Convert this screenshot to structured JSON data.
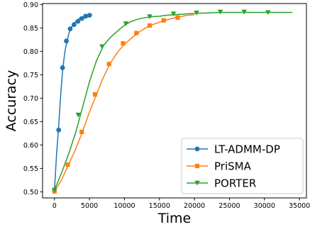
{
  "chart_data": {
    "type": "line",
    "title": "",
    "xlabel": "Time",
    "ylabel": "Accuracy",
    "xlim": [
      -1700,
      36000
    ],
    "ylim": [
      0.487,
      0.902
    ],
    "xticks": [
      0,
      5000,
      10000,
      15000,
      20000,
      25000,
      30000,
      35000
    ],
    "xtick_labels": [
      "0",
      "5000",
      "10000",
      "15000",
      "20000",
      "25000",
      "30000",
      "35000"
    ],
    "yticks": [
      0.5,
      0.55,
      0.6,
      0.65,
      0.7,
      0.75,
      0.8,
      0.85,
      0.9
    ],
    "ytick_labels": [
      "0.50",
      "0.55",
      "0.60",
      "0.65",
      "0.70",
      "0.75",
      "0.80",
      "0.85",
      "0.90"
    ],
    "grid": false,
    "legend_position": "lower-right",
    "series": [
      {
        "name": "LT-ADMM-DP",
        "color": "#1f77b4",
        "marker": "circle",
        "line": [
          [
            0,
            0.503
          ],
          [
            300,
            0.58
          ],
          [
            600,
            0.64
          ],
          [
            900,
            0.71
          ],
          [
            1200,
            0.765
          ],
          [
            1500,
            0.8
          ],
          [
            1800,
            0.822
          ],
          [
            2100,
            0.84
          ],
          [
            2400,
            0.85
          ],
          [
            2700,
            0.858
          ],
          [
            3000,
            0.863
          ],
          [
            3300,
            0.867
          ],
          [
            3600,
            0.871
          ],
          [
            3900,
            0.873
          ],
          [
            4200,
            0.874
          ],
          [
            4500,
            0.876
          ],
          [
            4800,
            0.877
          ],
          [
            5100,
            0.877
          ],
          [
            5400,
            0.878
          ]
        ],
        "points": [
          [
            0,
            0.503
          ],
          [
            600,
            0.632
          ],
          [
            1150,
            0.765
          ],
          [
            1700,
            0.822
          ],
          [
            2250,
            0.848
          ],
          [
            2800,
            0.857
          ],
          [
            3350,
            0.864
          ],
          [
            3900,
            0.87
          ],
          [
            4450,
            0.875
          ],
          [
            5000,
            0.877
          ]
        ]
      },
      {
        "name": "PriSMA",
        "color": "#ff7f0e",
        "marker": "square",
        "line": [
          [
            0,
            0.501
          ],
          [
            1000,
            0.525
          ],
          [
            2000,
            0.558
          ],
          [
            3000,
            0.59
          ],
          [
            4000,
            0.628
          ],
          [
            5000,
            0.67
          ],
          [
            6000,
            0.708
          ],
          [
            7000,
            0.745
          ],
          [
            8000,
            0.775
          ],
          [
            9000,
            0.798
          ],
          [
            10000,
            0.815
          ],
          [
            11000,
            0.828
          ],
          [
            12000,
            0.84
          ],
          [
            13000,
            0.85
          ],
          [
            14000,
            0.857
          ],
          [
            15000,
            0.862
          ],
          [
            16000,
            0.867
          ],
          [
            17000,
            0.871
          ],
          [
            18000,
            0.874
          ],
          [
            19000,
            0.877
          ],
          [
            20000,
            0.878
          ]
        ],
        "points": [
          [
            0,
            0.501
          ],
          [
            1900,
            0.558
          ],
          [
            3900,
            0.628
          ],
          [
            5800,
            0.708
          ],
          [
            7800,
            0.773
          ],
          [
            9800,
            0.817
          ],
          [
            11700,
            0.839
          ],
          [
            13600,
            0.855
          ],
          [
            15600,
            0.866
          ],
          [
            17600,
            0.872
          ]
        ]
      },
      {
        "name": "PORTER",
        "color": "#2ca02c",
        "marker": "triangle-down",
        "line": [
          [
            0,
            0.504
          ],
          [
            1000,
            0.54
          ],
          [
            2000,
            0.58
          ],
          [
            3000,
            0.625
          ],
          [
            4000,
            0.68
          ],
          [
            5000,
            0.735
          ],
          [
            6000,
            0.78
          ],
          [
            7000,
            0.812
          ],
          [
            8000,
            0.83
          ],
          [
            9000,
            0.843
          ],
          [
            10000,
            0.856
          ],
          [
            11000,
            0.864
          ],
          [
            12000,
            0.869
          ],
          [
            13000,
            0.872
          ],
          [
            14000,
            0.874
          ],
          [
            15000,
            0.875
          ],
          [
            16000,
            0.877
          ],
          [
            17000,
            0.878
          ],
          [
            18000,
            0.879
          ],
          [
            19000,
            0.88
          ],
          [
            20000,
            0.881
          ],
          [
            22000,
            0.882
          ],
          [
            24000,
            0.883
          ],
          [
            26000,
            0.883
          ],
          [
            28000,
            0.883
          ],
          [
            30000,
            0.883
          ],
          [
            32000,
            0.883
          ],
          [
            34000,
            0.883
          ]
        ],
        "points": [
          [
            0,
            0.504
          ],
          [
            3400,
            0.664
          ],
          [
            6800,
            0.81
          ],
          [
            10200,
            0.859
          ],
          [
            13600,
            0.874
          ],
          [
            17000,
            0.88
          ],
          [
            20300,
            0.882
          ],
          [
            23700,
            0.884
          ],
          [
            27100,
            0.884
          ],
          [
            30500,
            0.883
          ]
        ]
      }
    ]
  }
}
